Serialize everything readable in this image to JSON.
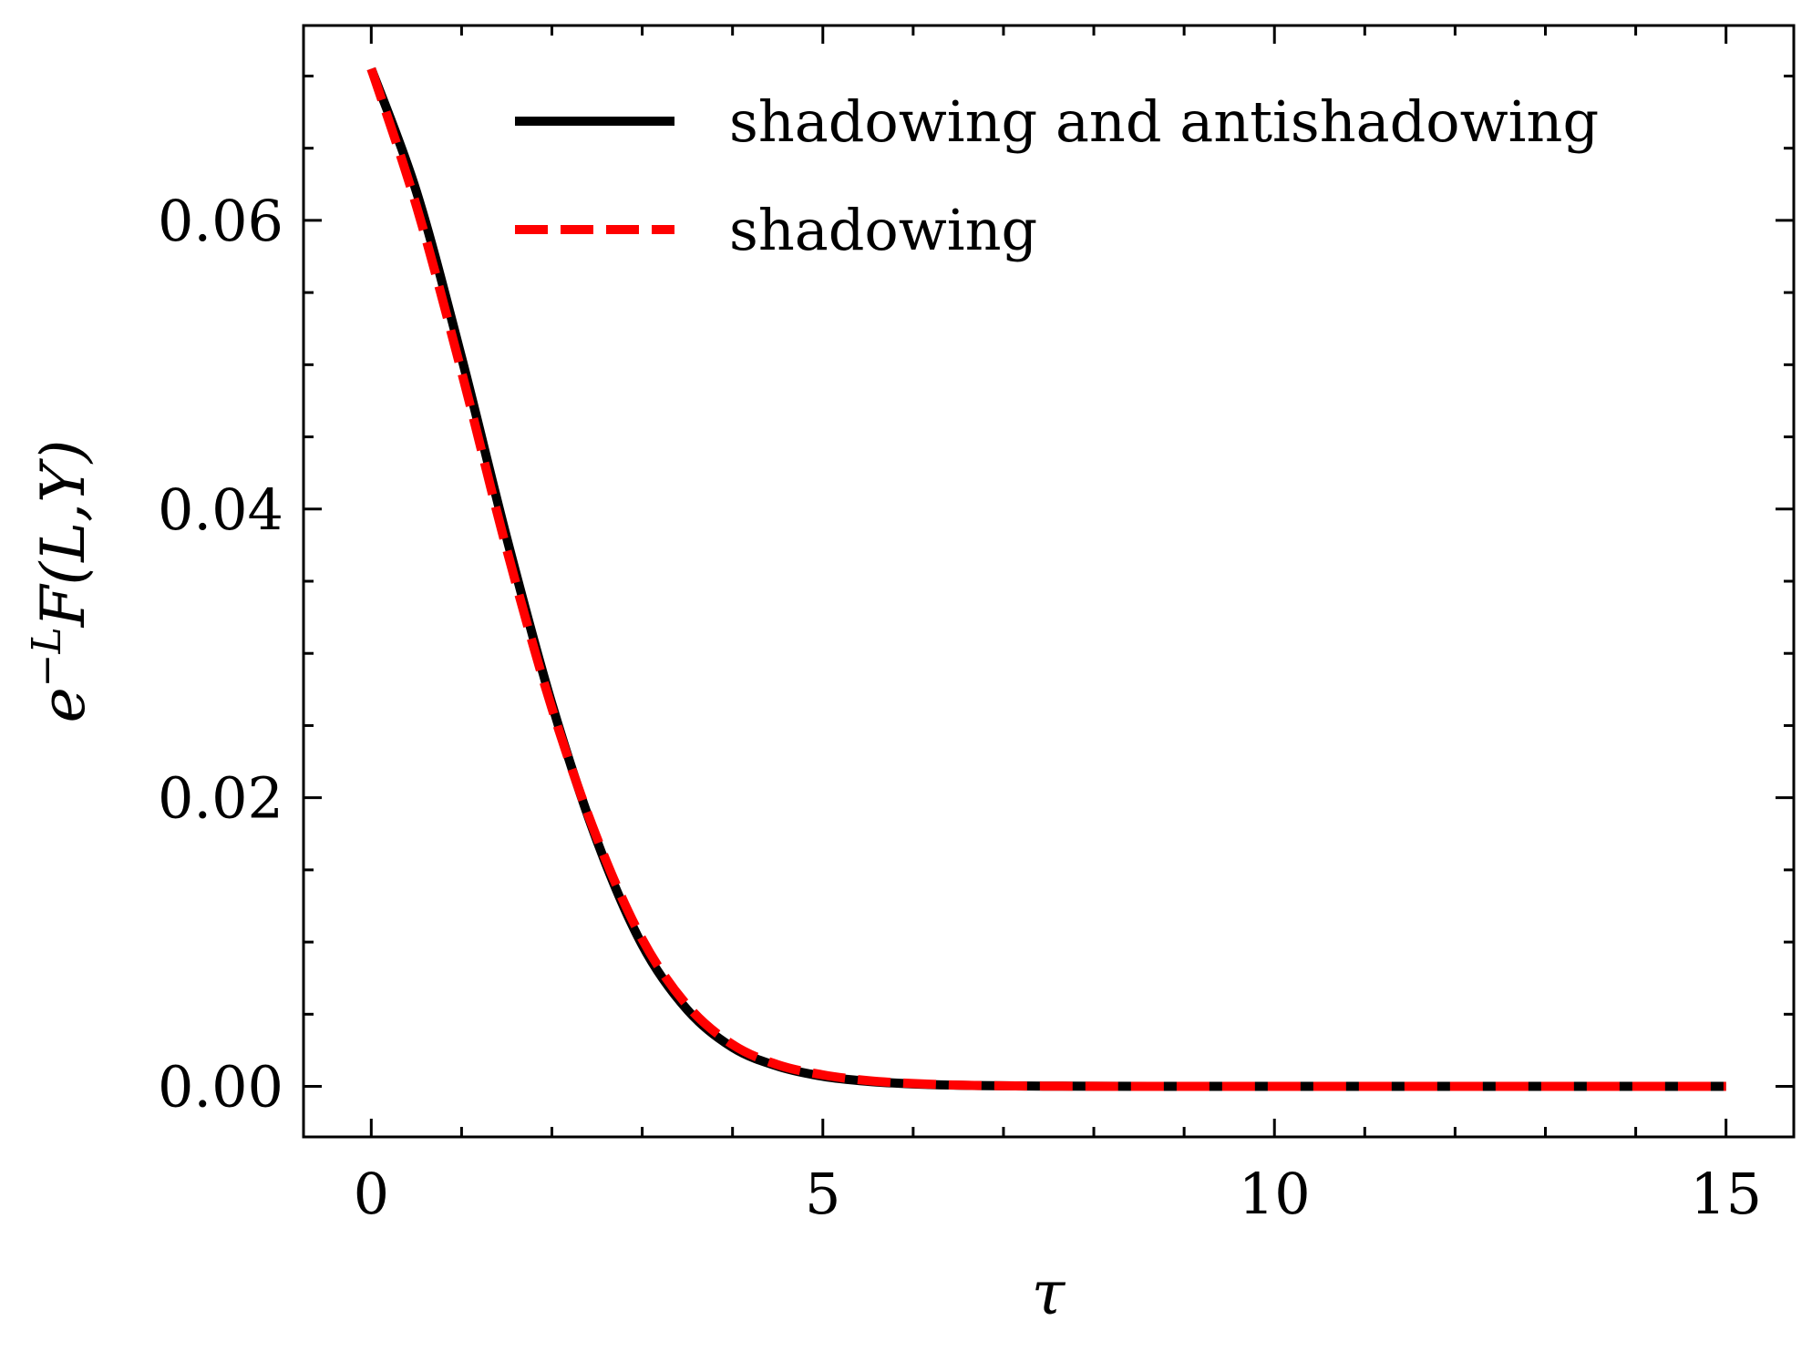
{
  "chart_data": {
    "type": "line",
    "xlabel": "τ",
    "ylabel": {
      "base": "e",
      "sup": "−L",
      "rest": "F(L,Y)"
    },
    "xlim": [
      -0.75,
      15.75
    ],
    "ylim": [
      -0.0035,
      0.0735
    ],
    "xticks": [
      0,
      5,
      10,
      15
    ],
    "xtick_labels": [
      "0",
      "5",
      "10",
      "15"
    ],
    "yticks": [
      0.0,
      0.02,
      0.04,
      0.06
    ],
    "ytick_labels": [
      "0.00",
      "0.02",
      "0.04",
      "0.06"
    ],
    "x_minor_step": 1,
    "y_minor_step": 0.005,
    "grid": false,
    "legend_position": "top-right",
    "x": [
      0,
      0.5,
      1,
      1.5,
      2,
      2.5,
      3,
      3.5,
      4,
      4.5,
      5,
      5.5,
      6,
      6.5,
      7,
      7.5,
      8,
      9,
      10,
      11,
      12,
      13,
      14,
      15
    ],
    "series": [
      {
        "name": "shadowing and antishadowing",
        "color": "#000000",
        "style": "solid",
        "values": [
          0.0705,
          0.062,
          0.0505,
          0.038,
          0.0265,
          0.017,
          0.0098,
          0.0053,
          0.0027,
          0.0014,
          0.0007,
          0.00035,
          0.00017,
          8e-05,
          4e-05,
          2e-05,
          1e-05,
          0.0,
          0.0,
          0.0,
          0.0,
          0.0,
          0.0,
          0.0
        ]
      },
      {
        "name": "shadowing",
        "color": "#ff0000",
        "style": "dashed",
        "values": [
          0.0705,
          0.061,
          0.0495,
          0.0372,
          0.0262,
          0.0172,
          0.0102,
          0.0056,
          0.0029,
          0.0015,
          0.0008,
          0.0004,
          0.0002,
          9e-05,
          4e-05,
          2e-05,
          1e-05,
          0.0,
          0.0,
          0.0,
          0.0,
          0.0,
          0.0,
          0.0
        ]
      }
    ]
  }
}
